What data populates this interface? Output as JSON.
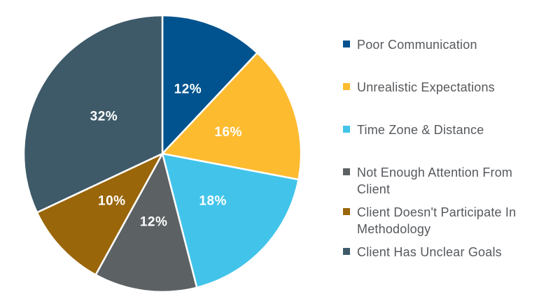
{
  "colors": {
    "background": "#ffffff",
    "slice_divider": "#ffffff",
    "slice_label_text": "#ffffff",
    "legend_text": "#56595d"
  },
  "chart_data": {
    "type": "pie",
    "title": "",
    "start_angle_deg": 0,
    "direction": "clockwise",
    "data_labels": "percent-inside",
    "legend_position": "right",
    "slices": [
      {
        "label": "Poor Communication",
        "value": 12,
        "display": "12%",
        "color": "#00538F"
      },
      {
        "label": "Unrealistic Expectations",
        "value": 16,
        "display": "16%",
        "color": "#FDBB30"
      },
      {
        "label": "Time Zone & Distance",
        "value": 18,
        "display": "18%",
        "color": "#42C4EA"
      },
      {
        "label": "Not Enough Attention From Client",
        "value": 12,
        "display": "12%",
        "color": "#5C6164"
      },
      {
        "label": "Client Doesn't Participate In Methodology",
        "value": 10,
        "display": "10%",
        "color": "#9A660A"
      },
      {
        "label": "Client Has Unclear Goals",
        "value": 32,
        "display": "32%",
        "color": "#3E5A69"
      }
    ]
  }
}
